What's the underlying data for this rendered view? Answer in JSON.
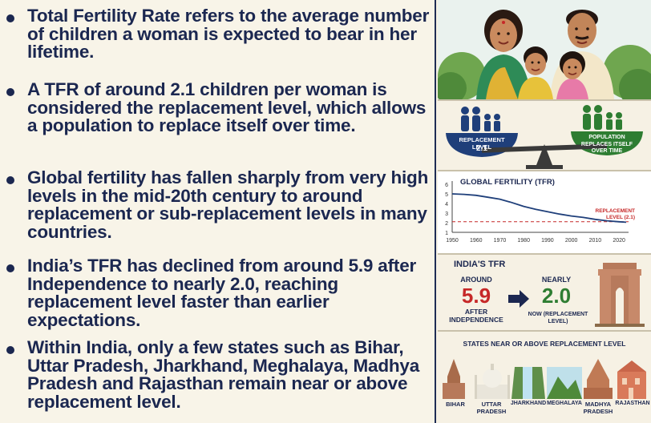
{
  "bullets": [
    "Total Fertility Rate refers to the average number of children a woman is expected to bear in her lifetime.",
    "A TFR of around 2.1 children per woman is considered the replacement level, which allows a population to replace itself over time.",
    "Global fertility has fallen sharply from very high levels in the mid-20th century to around replacement or sub-replacement levels in many countries.",
    "India’s TFR has declined from around 5.9 after Independence to nearly 2.0, reaching replacement level faster than earlier expectations.",
    "Within India, only a few states such as Bihar, Uttar Pradesh, Jharkhand, Meghalaya, Madhya Pradesh and Rajasthan remain near or above replacement level."
  ],
  "scale": {
    "left_label": "REPLACEMENT LEVEL",
    "left_value": "2.1",
    "right_label": "POPULATION REPLACES ITSELF OVER TIME"
  },
  "chart_data": {
    "type": "line",
    "title": "GLOBAL FERTILITY (TFR)",
    "x_ticks": [
      "1950",
      "1960",
      "1970",
      "1980",
      "1990",
      "2000",
      "2010",
      "2020"
    ],
    "y_ticks": [
      "1",
      "2",
      "3",
      "4",
      "5",
      "6"
    ],
    "xlim": [
      1950,
      2024
    ],
    "ylim": [
      1,
      6
    ],
    "series": [
      {
        "x": [
          1950,
          1955,
          1960,
          1965,
          1970,
          1975,
          1980,
          1985,
          1990,
          1995,
          2000,
          2005,
          2010,
          2015,
          2020,
          2023
        ],
        "y": [
          5.0,
          4.95,
          4.85,
          4.65,
          4.45,
          4.1,
          3.7,
          3.4,
          3.15,
          2.9,
          2.7,
          2.55,
          2.35,
          2.2,
          2.1,
          2.05
        ]
      }
    ],
    "reference_line": {
      "y": 2.1,
      "label": "REPLACEMENT LEVEL (2.1)",
      "color": "#c62828"
    },
    "line_color": "#1f3f7a"
  },
  "india": {
    "title": "INDIA'S TFR",
    "around": "AROUND",
    "from_value": "5.9",
    "after": "AFTER INDEPENDENCE",
    "nearly": "NEARLY",
    "to_value": "2.0",
    "now": "NOW (REPLACEMENT LEVEL)"
  },
  "states": {
    "title": "STATES NEAR OR ABOVE REPLACEMENT LEVEL",
    "items": [
      {
        "name": "BIHAR"
      },
      {
        "name": "UTTAR PRADESH"
      },
      {
        "name": "JHARKHAND"
      },
      {
        "name": "MEGHALAYA"
      },
      {
        "name": "MADHYA PRADESH"
      },
      {
        "name": "RAJASTHAN"
      }
    ]
  },
  "colors": {
    "navy": "#1b2750",
    "red": "#c62828",
    "green": "#2e7d32"
  }
}
